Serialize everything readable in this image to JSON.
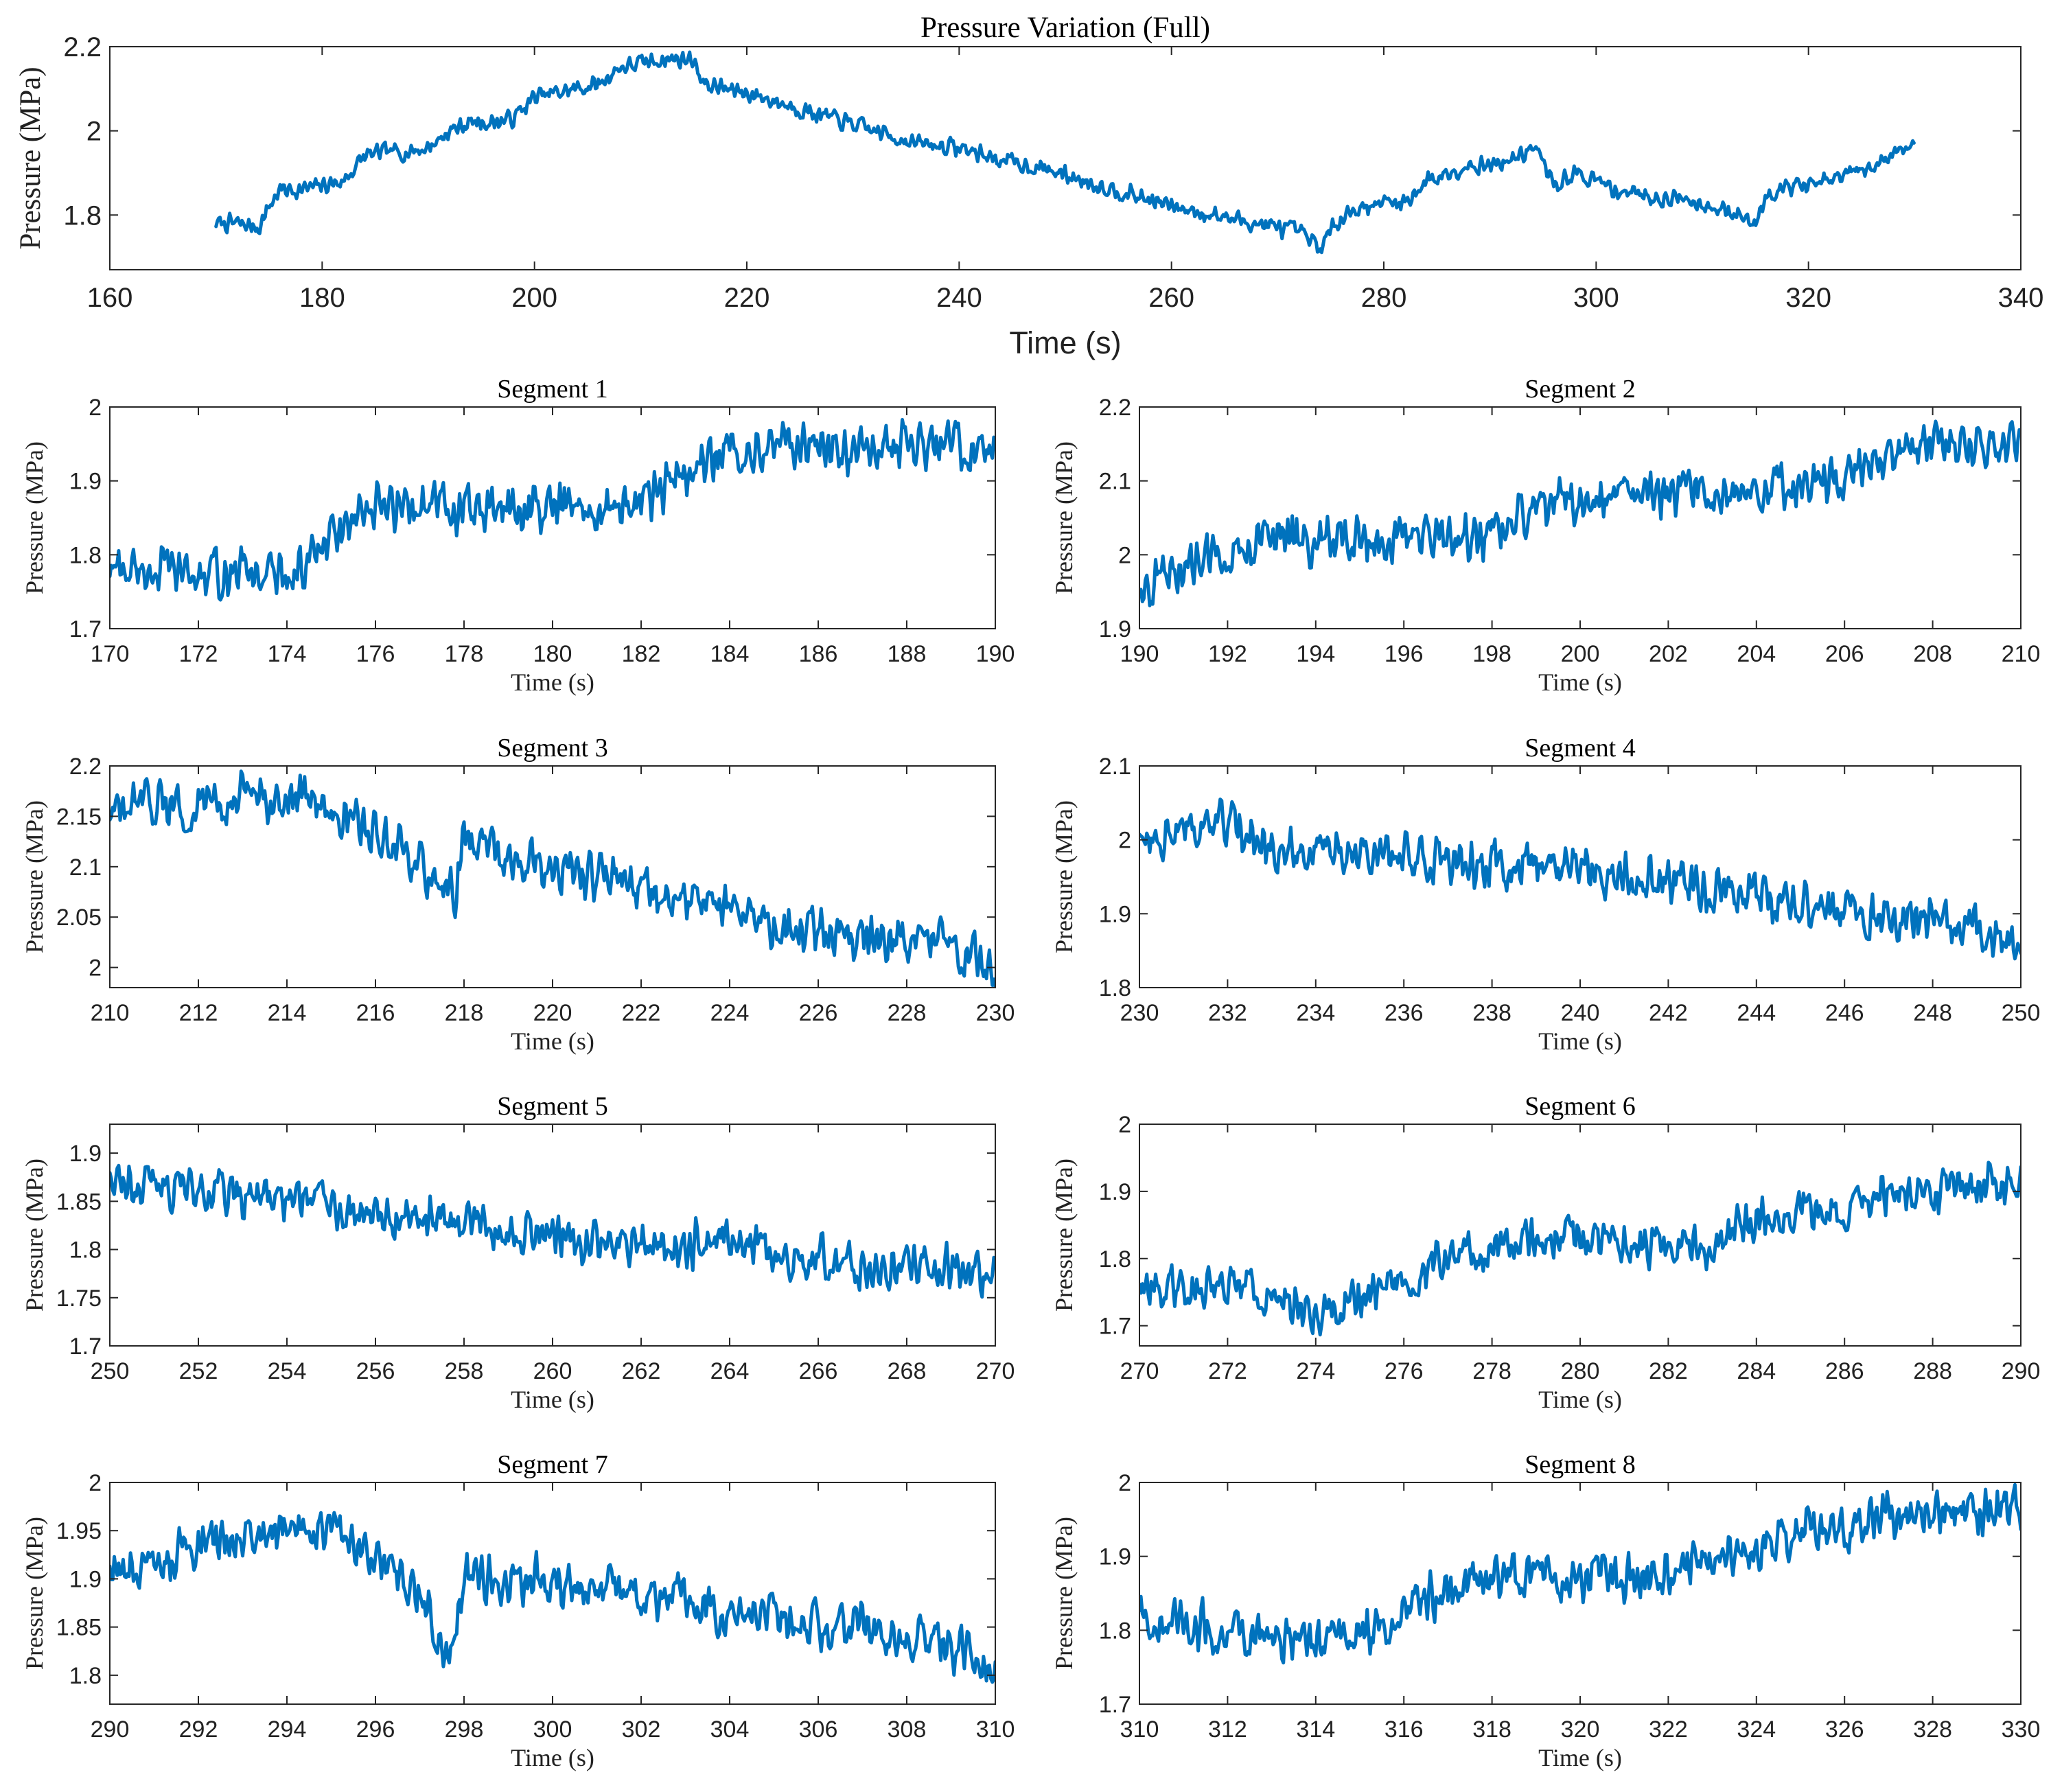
{
  "colors": {
    "series": "#0072BD"
  },
  "chart_data": [
    {
      "id": "full",
      "type": "line",
      "title": "Pressure Variation (Full)",
      "xlabel": "Time (s)",
      "ylabel": "Pressure (MPa)",
      "xlim": [
        160,
        340
      ],
      "ylim": [
        1.67,
        2.2
      ],
      "xticks": [
        "160",
        "180",
        "200",
        "220",
        "240",
        "260",
        "280",
        "300",
        "320",
        "340"
      ],
      "yticks": [
        "1.8",
        "2",
        "2.2"
      ],
      "noise": 0.025,
      "series": [
        {
          "name": "Pressure",
          "x": [
            170,
            172,
            174,
            175,
            176,
            178,
            180,
            182,
            184,
            186,
            188,
            190,
            192,
            194,
            196,
            198,
            200,
            202,
            204,
            206,
            208,
            210,
            212,
            214,
            215,
            216,
            218,
            220,
            224,
            228,
            232,
            236,
            240,
            244,
            248,
            252,
            256,
            260,
            264,
            268,
            272,
            274,
            275,
            276,
            278,
            280,
            282,
            284,
            286,
            288,
            290,
            292,
            294,
            294.5,
            296,
            298,
            300,
            302,
            304,
            306,
            308,
            310,
            312,
            314,
            315,
            316,
            318,
            320,
            322,
            324,
            326,
            328,
            330
          ],
          "y": [
            1.78,
            1.78,
            1.77,
            1.82,
            1.86,
            1.86,
            1.87,
            1.88,
            1.94,
            1.95,
            1.95,
            1.96,
            2.0,
            2.02,
            2.02,
            2.03,
            2.08,
            2.09,
            2.1,
            2.11,
            2.15,
            2.16,
            2.17,
            2.17,
            2.17,
            2.11,
            2.1,
            2.09,
            2.06,
            2.03,
            2.0,
            1.97,
            1.96,
            1.93,
            1.91,
            1.88,
            1.85,
            1.82,
            1.8,
            1.78,
            1.76,
            1.72,
            1.76,
            1.8,
            1.82,
            1.83,
            1.83,
            1.88,
            1.9,
            1.92,
            1.92,
            1.93,
            1.96,
            1.95,
            1.87,
            1.9,
            1.88,
            1.86,
            1.85,
            1.84,
            1.84,
            1.83,
            1.81,
            1.79,
            1.78,
            1.85,
            1.87,
            1.87,
            1.88,
            1.9,
            1.91,
            1.95,
            1.97
          ]
        }
      ]
    },
    {
      "id": "seg1",
      "type": "line",
      "title": "Segment 1",
      "xlabel": "Time (s)",
      "ylabel": "Pressure (MPa)",
      "xlim": [
        170,
        190
      ],
      "ylim": [
        1.7,
        2.0
      ],
      "xticks": [
        "170",
        "172",
        "174",
        "176",
        "178",
        "180",
        "182",
        "184",
        "186",
        "188",
        "190"
      ],
      "yticks": [
        "1.7",
        "1.8",
        "1.9",
        "2"
      ],
      "noise": 0.04,
      "series": [
        {
          "name": "Pressure",
          "x": [
            170,
            171,
            172,
            173,
            174,
            174.5,
            175,
            176,
            177,
            178,
            179,
            180,
            181,
            182,
            183,
            184,
            185,
            186,
            187,
            188,
            189,
            190
          ],
          "y": [
            1.78,
            1.78,
            1.77,
            1.78,
            1.77,
            1.79,
            1.82,
            1.86,
            1.87,
            1.86,
            1.86,
            1.86,
            1.86,
            1.87,
            1.91,
            1.94,
            1.95,
            1.95,
            1.94,
            1.95,
            1.95,
            1.94
          ]
        }
      ]
    },
    {
      "id": "seg2",
      "type": "line",
      "title": "Segment 2",
      "xlabel": "Time (s)",
      "ylabel": "Pressure (MPa)",
      "xlim": [
        190,
        210
      ],
      "ylim": [
        1.9,
        2.2
      ],
      "xticks": [
        "190",
        "192",
        "194",
        "196",
        "198",
        "200",
        "202",
        "204",
        "206",
        "208",
        "210"
      ],
      "yticks": [
        "1.9",
        "2",
        "2.1",
        "2.2"
      ],
      "noise": 0.04,
      "series": [
        {
          "name": "Pressure",
          "x": [
            190,
            191,
            192,
            193,
            194,
            195,
            196,
            197,
            198,
            199,
            200,
            201,
            202,
            203,
            204,
            205,
            206,
            207,
            208,
            209,
            210
          ],
          "y": [
            1.95,
            1.98,
            2.01,
            2.02,
            2.02,
            2.02,
            2.02,
            2.02,
            2.03,
            2.06,
            2.08,
            2.08,
            2.08,
            2.09,
            2.09,
            2.1,
            2.1,
            2.12,
            2.15,
            2.15,
            2.15
          ]
        }
      ]
    },
    {
      "id": "seg3",
      "type": "line",
      "title": "Segment 3",
      "xlabel": "Time (s)",
      "ylabel": "Pressure (MPa)",
      "xlim": [
        210,
        230
      ],
      "ylim": [
        1.98,
        2.2
      ],
      "xticks": [
        "210",
        "212",
        "214",
        "216",
        "218",
        "220",
        "222",
        "224",
        "226",
        "228",
        "230"
      ],
      "yticks": [
        "2",
        "2.05",
        "2.1",
        "2.15",
        "2.2"
      ],
      "noise": 0.03,
      "series": [
        {
          "name": "Pressure",
          "x": [
            210,
            211,
            212,
            213,
            214,
            215,
            216,
            217,
            217.8,
            218,
            219,
            220,
            221,
            222,
            223,
            224,
            225,
            226,
            227,
            228,
            229,
            230
          ],
          "y": [
            2.15,
            2.16,
            2.16,
            2.17,
            2.17,
            2.16,
            2.13,
            2.1,
            2.07,
            2.13,
            2.11,
            2.1,
            2.09,
            2.08,
            2.07,
            2.06,
            2.04,
            2.04,
            2.03,
            2.03,
            2.02,
            2.0
          ]
        }
      ]
    },
    {
      "id": "seg4",
      "type": "line",
      "title": "Segment 4",
      "xlabel": "Time (s)",
      "ylabel": "Pressure (MPa)",
      "xlim": [
        230,
        250
      ],
      "ylim": [
        1.8,
        2.1
      ],
      "xticks": [
        "230",
        "232",
        "234",
        "236",
        "238",
        "240",
        "242",
        "244",
        "246",
        "248",
        "250"
      ],
      "yticks": [
        "1.8",
        "1.9",
        "2",
        "2.1"
      ],
      "noise": 0.04,
      "series": [
        {
          "name": "Pressure",
          "x": [
            230,
            231,
            232,
            233,
            234,
            235,
            236,
            237,
            238,
            239,
            240,
            241,
            242,
            243,
            244,
            245,
            246,
            247,
            248,
            249,
            250
          ],
          "y": [
            2.01,
            2.01,
            2.02,
            1.99,
            1.99,
            1.98,
            1.98,
            1.97,
            1.97,
            1.96,
            1.96,
            1.95,
            1.95,
            1.93,
            1.92,
            1.91,
            1.9,
            1.9,
            1.89,
            1.88,
            1.87
          ]
        }
      ]
    },
    {
      "id": "seg5",
      "type": "line",
      "title": "Segment 5",
      "xlabel": "Time (s)",
      "ylabel": "Pressure (MPa)",
      "xlim": [
        250,
        270
      ],
      "ylim": [
        1.7,
        1.93
      ],
      "xticks": [
        "250",
        "252",
        "254",
        "256",
        "258",
        "260",
        "262",
        "264",
        "266",
        "268",
        "270"
      ],
      "yticks": [
        "1.7",
        "1.75",
        "1.8",
        "1.85",
        "1.9"
      ],
      "noise": 0.03,
      "series": [
        {
          "name": "Pressure",
          "x": [
            250,
            251,
            252,
            253,
            254,
            255,
            256,
            257,
            258,
            259,
            260,
            261,
            262,
            263,
            264,
            265,
            266,
            267,
            268,
            269,
            270
          ],
          "y": [
            1.88,
            1.87,
            1.86,
            1.86,
            1.85,
            1.85,
            1.84,
            1.83,
            1.83,
            1.82,
            1.82,
            1.81,
            1.81,
            1.8,
            1.82,
            1.79,
            1.79,
            1.78,
            1.78,
            1.78,
            1.77
          ]
        }
      ]
    },
    {
      "id": "seg6",
      "type": "line",
      "title": "Segment 6",
      "xlabel": "Time (s)",
      "ylabel": "Pressure (MPa)",
      "xlim": [
        270,
        290
      ],
      "ylim": [
        1.67,
        2.0
      ],
      "xticks": [
        "270",
        "272",
        "274",
        "276",
        "278",
        "280",
        "282",
        "284",
        "286",
        "288",
        "290"
      ],
      "yticks": [
        "1.7",
        "1.8",
        "1.9",
        "2"
      ],
      "noise": 0.04,
      "series": [
        {
          "name": "Pressure",
          "x": [
            270,
            271,
            272,
            273,
            274,
            275,
            276,
            277,
            278,
            279,
            280,
            281,
            282,
            283,
            284,
            285,
            286,
            287,
            288,
            289,
            290
          ],
          "y": [
            1.76,
            1.76,
            1.76,
            1.75,
            1.72,
            1.74,
            1.77,
            1.8,
            1.82,
            1.83,
            1.83,
            1.82,
            1.82,
            1.82,
            1.86,
            1.87,
            1.88,
            1.9,
            1.9,
            1.91,
            1.92
          ]
        }
      ]
    },
    {
      "id": "seg7",
      "type": "line",
      "title": "Segment 7",
      "xlabel": "Time (s)",
      "ylabel": "Pressure (MPa)",
      "xlim": [
        290,
        310
      ],
      "ylim": [
        1.77,
        2.0
      ],
      "xticks": [
        "290",
        "292",
        "294",
        "296",
        "298",
        "300",
        "302",
        "304",
        "306",
        "308",
        "310"
      ],
      "yticks": [
        "1.8",
        "1.85",
        "1.9",
        "1.95",
        "2"
      ],
      "noise": 0.03,
      "series": [
        {
          "name": "Pressure",
          "x": [
            290,
            291,
            292,
            293,
            294,
            295,
            296,
            297,
            297.6,
            298,
            299,
            300,
            301,
            302,
            303,
            304,
            305,
            306,
            307,
            308,
            309,
            310
          ],
          "y": [
            1.91,
            1.92,
            1.93,
            1.94,
            1.96,
            1.95,
            1.92,
            1.88,
            1.82,
            1.9,
            1.9,
            1.9,
            1.89,
            1.88,
            1.88,
            1.86,
            1.86,
            1.85,
            1.85,
            1.84,
            1.83,
            1.8
          ]
        }
      ]
    },
    {
      "id": "seg8",
      "type": "line",
      "title": "Segment 8",
      "xlabel": "Time (s)",
      "ylabel": "Pressure (MPa)",
      "xlim": [
        310,
        330
      ],
      "ylim": [
        1.7,
        2.0
      ],
      "xticks": [
        "310",
        "312",
        "314",
        "316",
        "318",
        "320",
        "322",
        "324",
        "326",
        "328",
        "330"
      ],
      "yticks": [
        "1.7",
        "1.8",
        "1.9",
        "2"
      ],
      "noise": 0.04,
      "series": [
        {
          "name": "Pressure",
          "x": [
            310,
            311,
            312,
            313,
            314,
            315,
            316,
            317,
            318,
            319,
            320,
            321,
            322,
            323,
            324,
            325,
            326,
            327,
            328,
            329,
            330
          ],
          "y": [
            1.82,
            1.81,
            1.8,
            1.79,
            1.78,
            1.79,
            1.83,
            1.85,
            1.87,
            1.87,
            1.87,
            1.87,
            1.88,
            1.9,
            1.91,
            1.93,
            1.94,
            1.96,
            1.96,
            1.96,
            1.96
          ]
        }
      ]
    }
  ]
}
